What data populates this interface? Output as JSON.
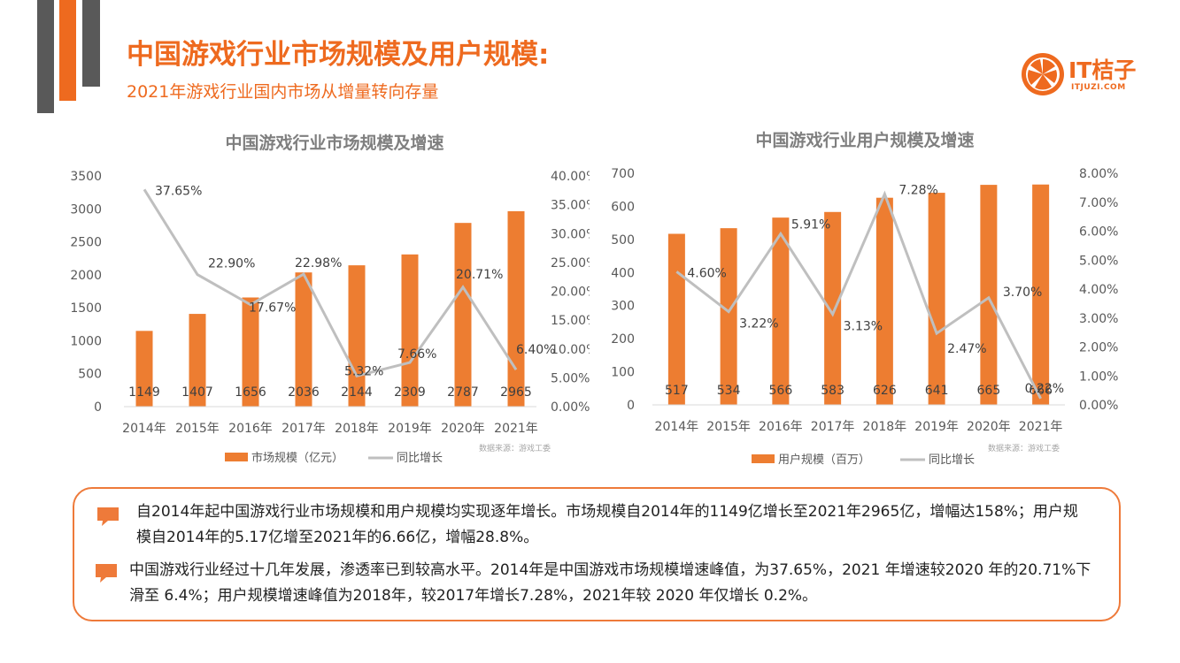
{
  "header": {
    "title": "中国游戏行业市场规模及用户规模:",
    "subtitle": "2021年游戏行业国内市场从增量转向存量",
    "logo_text": "IT桔子",
    "logo_sub": "ITJUZI.COM"
  },
  "colors": {
    "accent": "#ee6a1f",
    "bar": "#ed7d31",
    "line": "#bfbfbf",
    "deco_dark": "#595959"
  },
  "chart_data": [
    {
      "type": "bar",
      "title": "中国游戏行业市场规模及增速",
      "categories": [
        "2014年",
        "2015年",
        "2016年",
        "2017年",
        "2018年",
        "2019年",
        "2020年",
        "2021年"
      ],
      "series": [
        {
          "name": "市场规模（亿元）",
          "type": "bar",
          "axis": "left",
          "values": [
            1149,
            1407,
            1656,
            2036,
            2144,
            2309,
            2787,
            2965
          ],
          "labels": [
            "1149",
            "1407",
            "1656",
            "2036",
            "2144",
            "2309",
            "2787",
            "2965"
          ]
        },
        {
          "name": "同比增长",
          "type": "line",
          "axis": "right",
          "values": [
            37.65,
            22.9,
            17.67,
            22.98,
            5.32,
            7.66,
            20.71,
            6.4
          ],
          "labels": [
            "37.65%",
            "22.90%",
            "17.67%",
            "22.98%",
            "5.32%",
            "7.66%",
            "20.71%",
            "6.40%"
          ]
        }
      ],
      "ylim": [
        0,
        3500
      ],
      "y_ticks": [
        "0",
        "500",
        "1000",
        "1500",
        "2000",
        "2500",
        "3000",
        "3500"
      ],
      "y2lim": [
        0,
        40
      ],
      "y2_ticks": [
        "0.00%",
        "5.00%",
        "10.00%",
        "15.00%",
        "20.00%",
        "25.00%",
        "30.00%",
        "35.00%",
        "40.00%"
      ],
      "source": "数据来源：游戏工委",
      "legend": "bottom"
    },
    {
      "type": "bar",
      "title": "中国游戏行业用户规模及增速",
      "categories": [
        "2014年",
        "2015年",
        "2016年",
        "2017年",
        "2018年",
        "2019年",
        "2020年",
        "2021年"
      ],
      "series": [
        {
          "name": "用户规模（百万）",
          "type": "bar",
          "axis": "left",
          "values": [
            517,
            534,
            566,
            583,
            626,
            641,
            665,
            666
          ],
          "labels": [
            "517",
            "534",
            "566",
            "583",
            "626",
            "641",
            "665",
            "666"
          ]
        },
        {
          "name": "同比增长",
          "type": "line",
          "axis": "right",
          "values": [
            4.6,
            3.22,
            5.91,
            3.13,
            7.28,
            2.47,
            3.7,
            0.22
          ],
          "labels": [
            "4.60%",
            "3.22%",
            "5.91%",
            "3.13%",
            "7.28%",
            "2.47%",
            "3.70%",
            "0.22%"
          ]
        }
      ],
      "ylim": [
        0,
        700
      ],
      "y_ticks": [
        "0",
        "100",
        "200",
        "300",
        "400",
        "500",
        "600",
        "700"
      ],
      "y2lim": [
        0,
        8
      ],
      "y2_ticks": [
        "0.00%",
        "1.00%",
        "2.00%",
        "3.00%",
        "4.00%",
        "5.00%",
        "6.00%",
        "7.00%",
        "8.00%"
      ],
      "source": "数据来源：游戏工委",
      "legend": "bottom"
    }
  ],
  "notes": [
    "自2014年起中国游戏行业市场规模和用户规模均实现逐年增长。市场规模自2014年的1149亿增长至2021年2965亿，增幅达158%；用户规模自2014年的5.17亿增至2021年的6.66亿，增幅28.8%。",
    "中国游戏行业经过十几年发展，渗透率已到较高水平。2014年是中国游戏市场规模增速峰值，为37.65%，2021 年增速较2020 年的20.71%下滑至 6.4%；用户规模增速峰值为2018年，较2017年增长7.28%，2021年较 2020 年仅增长 0.2%。"
  ]
}
